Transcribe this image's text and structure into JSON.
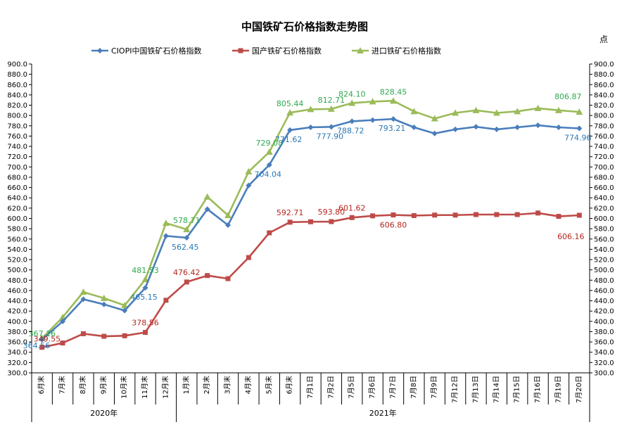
{
  "chart_data": {
    "type": "line",
    "title": "中国铁矿石价格指数走势图",
    "unit_label": "点",
    "categories": [
      "6月末",
      "7月末",
      "8月末",
      "9月末",
      "10月末",
      "11月末",
      "12月末",
      "1月末",
      "2月末",
      "3月末",
      "4月末",
      "5月末",
      "6月末",
      "7月1日",
      "7月2日",
      "7月5日",
      "7月6日",
      "7月7日",
      "7月8日",
      "7月9日",
      "7月12日",
      "7月13日",
      "7月14日",
      "7月15日",
      "7月16日",
      "7月19日",
      "7月20日"
    ],
    "groups": [
      {
        "label": "2020年",
        "start": 0,
        "end": 6
      },
      {
        "label": "2021年",
        "start": 7,
        "end": 26
      }
    ],
    "ylim": [
      300,
      900
    ],
    "ystep": 20,
    "y_decimals": 1,
    "legend_position": "top",
    "grid": false,
    "series": [
      {
        "name": "CIOPI中国铁矿石价格指数",
        "color": "#4a7ebb",
        "marker": "diamond",
        "values": [
          364.56,
          400,
          443,
          433,
          421,
          465.15,
          566,
          562.45,
          618,
          587,
          664,
          704.04,
          771.62,
          777,
          777.9,
          788.72,
          791,
          793.21,
          777,
          765,
          773,
          778,
          773,
          777,
          781,
          777,
          774.96
        ],
        "labels": {
          "0": "364.56",
          "5": "465.15",
          "7": "562.45",
          "11": "704.04",
          "12": "771.62",
          "14": "777.90",
          "15": "788.72",
          "17": "793.21",
          "26": "774.96"
        }
      },
      {
        "name": "国产铁矿石价格指数",
        "color": "#be4b48",
        "marker": "square",
        "values": [
          349.55,
          358,
          376,
          371,
          372,
          378.56,
          441,
          476.42,
          489,
          483,
          524,
          572,
          592.71,
          593.5,
          593.8,
          601.62,
          605,
          606.8,
          605.5,
          606.5,
          606.5,
          607.5,
          607.5,
          607.5,
          610.5,
          604,
          606.16
        ],
        "labels": {
          "0": "349.55",
          "5": "378.56",
          "7": "476.42",
          "12": "592.71",
          "14": "593.80",
          "15": "601.62",
          "17": "606.80",
          "26": "606.16"
        }
      },
      {
        "name": "进口铁矿石价格指数",
        "color": "#9bbb59",
        "marker": "triangle",
        "values": [
          367.16,
          408,
          457,
          445,
          431,
          481.53,
          591,
          578.71,
          642,
          606,
          691,
          729.08,
          805.44,
          812,
          812.71,
          824.1,
          827,
          828.45,
          808,
          794,
          805,
          810,
          805,
          808,
          814,
          810,
          806.87
        ],
        "labels": {
          "0": "367.16",
          "5": "481.53",
          "7": "578.71",
          "11": "729.08",
          "12": "805.44",
          "14": "812.71",
          "15": "824.10",
          "17": "828.45",
          "26": "806.87"
        }
      }
    ]
  }
}
